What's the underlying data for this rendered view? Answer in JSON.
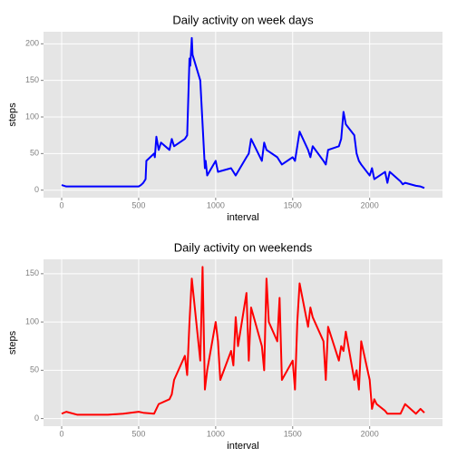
{
  "chart_data": [
    {
      "type": "line",
      "title": "Daily activity on week days",
      "xlabel": "interval",
      "ylabel": "steps",
      "color": "#0000ff",
      "x": [
        0,
        30,
        100,
        200,
        300,
        400,
        500,
        515,
        530,
        545,
        550,
        600,
        605,
        615,
        630,
        645,
        700,
        715,
        730,
        800,
        815,
        830,
        835,
        845,
        850,
        900,
        915,
        930,
        935,
        945,
        1000,
        1015,
        1100,
        1115,
        1130,
        1200,
        1215,
        1230,
        1300,
        1315,
        1330,
        1400,
        1415,
        1430,
        1500,
        1515,
        1530,
        1545,
        1600,
        1615,
        1630,
        1700,
        1715,
        1730,
        1800,
        1815,
        1830,
        1845,
        1900,
        1915,
        1930,
        1945,
        2000,
        2015,
        2030,
        2100,
        2115,
        2130,
        2200,
        2215,
        2230,
        2300,
        2330,
        2355
      ],
      "values": [
        7,
        5,
        5,
        5,
        5,
        5,
        5,
        7,
        10,
        15,
        40,
        50,
        45,
        73,
        55,
        65,
        55,
        70,
        60,
        70,
        75,
        180,
        170,
        208,
        185,
        150,
        90,
        30,
        40,
        20,
        40,
        25,
        30,
        25,
        20,
        45,
        50,
        70,
        40,
        65,
        55,
        45,
        40,
        35,
        45,
        40,
        60,
        80,
        55,
        45,
        60,
        40,
        35,
        55,
        60,
        70,
        107,
        90,
        75,
        50,
        40,
        35,
        20,
        30,
        15,
        25,
        10,
        25,
        12,
        8,
        10,
        6,
        5,
        3
      ],
      "xlim": [
        -117.75,
        2472.75
      ],
      "xticks": [
        0,
        500,
        1000,
        1500,
        2000
      ],
      "ylim": [
        -10.3,
        216.5
      ],
      "yticks": [
        0,
        50,
        100,
        150,
        200
      ]
    },
    {
      "type": "line",
      "title": "Daily activity on weekends",
      "xlabel": "interval",
      "ylabel": "steps",
      "color": "#ff0000",
      "x": [
        0,
        30,
        100,
        200,
        300,
        400,
        500,
        530,
        600,
        630,
        700,
        715,
        730,
        800,
        815,
        830,
        845,
        900,
        915,
        930,
        945,
        1000,
        1015,
        1030,
        1100,
        1115,
        1130,
        1145,
        1200,
        1215,
        1230,
        1300,
        1315,
        1330,
        1345,
        1400,
        1415,
        1430,
        1500,
        1515,
        1530,
        1545,
        1600,
        1615,
        1630,
        1700,
        1715,
        1730,
        1800,
        1815,
        1830,
        1845,
        1900,
        1915,
        1930,
        1945,
        2000,
        2015,
        2030,
        2045,
        2100,
        2115,
        2200,
        2230,
        2300,
        2330,
        2355
      ],
      "values": [
        5,
        7,
        4,
        4,
        4,
        5,
        7,
        6,
        5,
        15,
        20,
        25,
        40,
        65,
        45,
        100,
        145,
        60,
        157,
        30,
        50,
        100,
        80,
        40,
        70,
        55,
        105,
        75,
        130,
        60,
        115,
        75,
        50,
        145,
        100,
        80,
        125,
        40,
        60,
        30,
        100,
        140,
        95,
        115,
        105,
        80,
        40,
        95,
        60,
        75,
        70,
        90,
        40,
        50,
        30,
        80,
        40,
        10,
        20,
        15,
        8,
        5,
        5,
        15,
        5,
        10,
        6
      ],
      "xlim": [
        -117.75,
        2472.75
      ],
      "xticks": [
        0,
        500,
        1000,
        1500,
        2000
      ],
      "ylim": [
        -7.9,
        164.9
      ],
      "yticks": [
        0,
        50,
        100,
        150
      ]
    }
  ]
}
